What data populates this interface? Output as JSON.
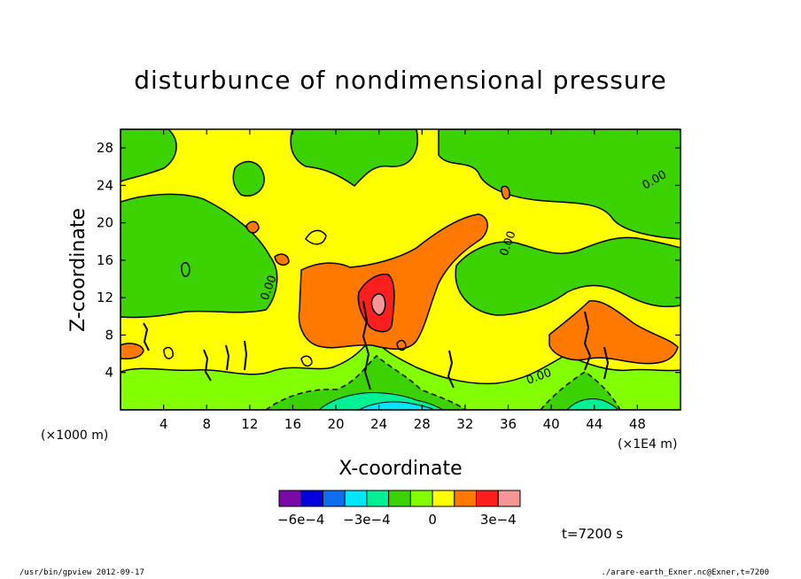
{
  "chart_data": {
    "type": "heatmap",
    "title": "disturbunce of nondimensional pressure",
    "xlabel": "X-coordinate",
    "ylabel": "Z-coordinate",
    "x_unit": "(×1000 m)",
    "x_unit_right": "(×1E4 m)",
    "xlim": [
      0,
      52
    ],
    "ylim": [
      0,
      30
    ],
    "x_ticks": [
      "4",
      "8",
      "12",
      "16",
      "20",
      "24",
      "28",
      "32",
      "36",
      "40",
      "44",
      "48"
    ],
    "y_ticks": [
      "4",
      "8",
      "12",
      "16",
      "20",
      "24",
      "28"
    ],
    "colorbar_levels": [
      -0.0007,
      -0.0006,
      -0.0005,
      -0.0004,
      -0.0003,
      -0.0002,
      -0.0001,
      0,
      0.0001,
      0.0002,
      0.0003,
      0.0004
    ],
    "colorbar_labels": [
      "−6e−4",
      "−3e−4",
      "0",
      "3e−4"
    ],
    "colorbar_colors": [
      "#7a0aa8",
      "#0000dc",
      "#0f6ef0",
      "#00e6ff",
      "#00f096",
      "#3cd200",
      "#82ff00",
      "#ffff00",
      "#ff7800",
      "#ff1e1e",
      "#f59696"
    ],
    "contour_label": "0.00",
    "time_label": "t=7200 s"
  },
  "footer": {
    "left": "/usr/bin/gpview   2012-09-17",
    "right": "./arare-earth_Exner.nc@Exner,t=7200"
  }
}
